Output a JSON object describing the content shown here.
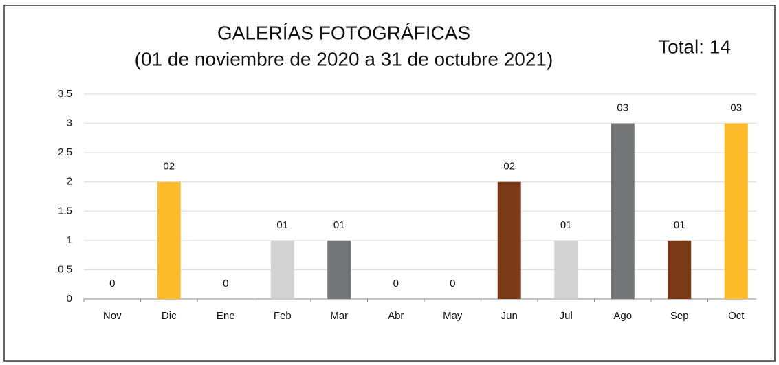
{
  "chart_data": {
    "type": "bar",
    "title": [
      "GALERÍAS FOTOGRÁFICAS",
      "(01 de noviembre de 2020 a 31 de octubre 2021)"
    ],
    "annotation": "Total: 14",
    "categories": [
      "Nov",
      "Dic",
      "Ene",
      "Feb",
      "Mar",
      "Abr",
      "May",
      "Jun",
      "Jul",
      "Ago",
      "Sep",
      "Oct"
    ],
    "values": [
      0,
      2,
      0,
      1,
      1,
      0,
      0,
      2,
      1,
      3,
      1,
      3
    ],
    "value_labels": [
      "0",
      "02",
      "0",
      "01",
      "01",
      "0",
      "0",
      "02",
      "01",
      "03",
      "01",
      "03"
    ],
    "colors": [
      "#7b3a17",
      "#fbbb2b",
      "#7b3a17",
      "#d3d3d3",
      "#737576",
      "#fbbb2b",
      "#d3d3d3",
      "#7b3a17",
      "#d3d3d3",
      "#737576",
      "#7b3a17",
      "#fbbb2b"
    ],
    "ylim": [
      0,
      3.5
    ],
    "yticks": [
      0,
      0.5,
      1,
      1.5,
      2,
      2.5,
      3,
      3.5
    ],
    "grid": true
  }
}
